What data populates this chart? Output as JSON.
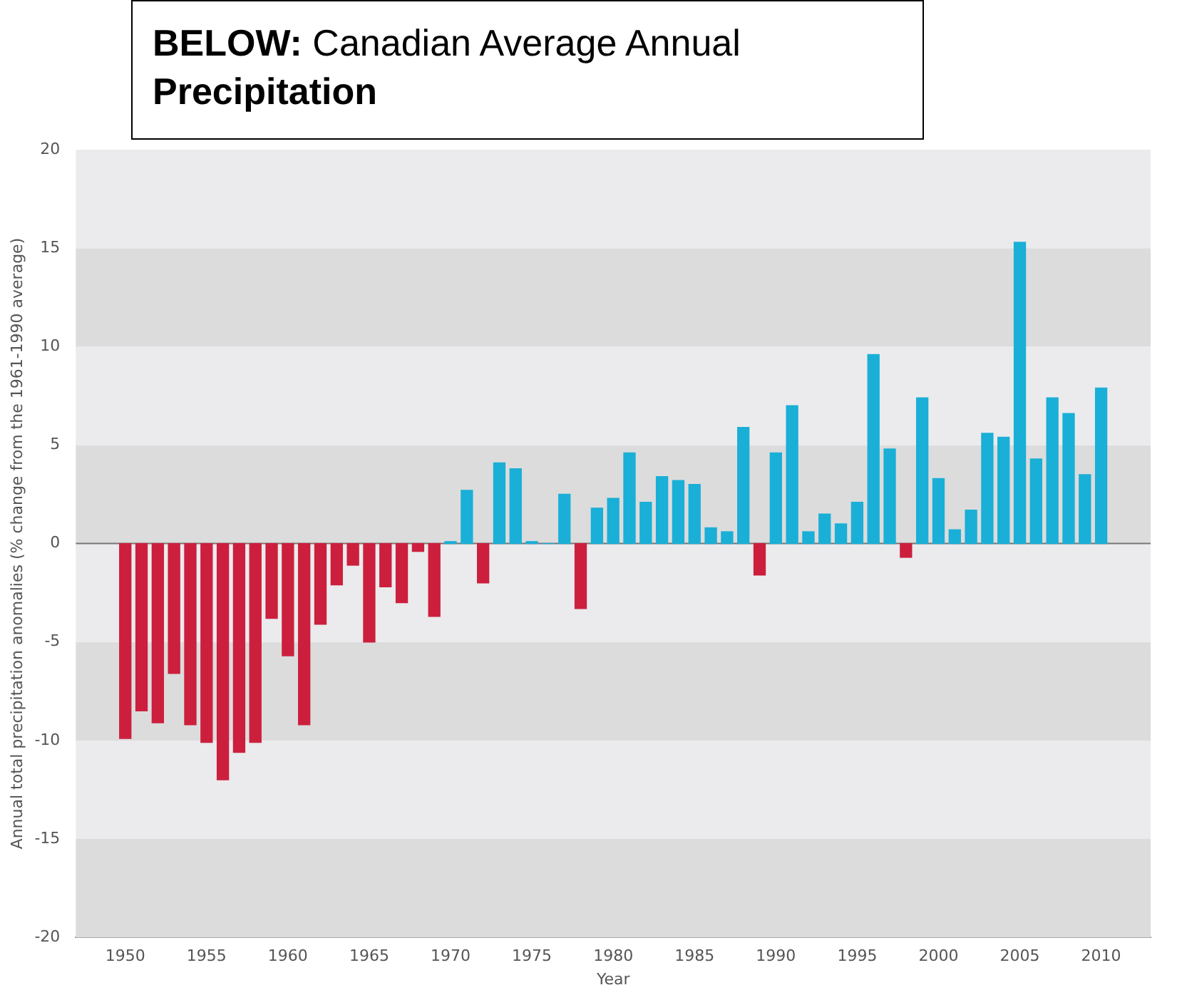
{
  "chart_data": {
    "type": "bar",
    "title": "BELOW: Canadian Average Annual Precipitation",
    "xlabel": "Year",
    "ylabel": "Annual total precipitation anomalies (% change from the 1961-1990 average)",
    "x": [
      1950,
      1951,
      1952,
      1953,
      1954,
      1955,
      1956,
      1957,
      1958,
      1959,
      1960,
      1961,
      1962,
      1963,
      1964,
      1965,
      1966,
      1967,
      1968,
      1969,
      1970,
      1971,
      1972,
      1973,
      1974,
      1975,
      1976,
      1977,
      1978,
      1979,
      1980,
      1981,
      1982,
      1983,
      1984,
      1985,
      1986,
      1987,
      1988,
      1989,
      1990,
      1991,
      1992,
      1993,
      1994,
      1995,
      1996,
      1997,
      1998,
      1999,
      2000,
      2001,
      2002,
      2003,
      2004,
      2005,
      2006,
      2007,
      2008,
      2009,
      2010
    ],
    "values": [
      -9.9,
      -8.5,
      -9.1,
      -6.6,
      -9.2,
      -10.1,
      -12.0,
      -10.6,
      -10.1,
      -3.8,
      -5.7,
      -9.2,
      -4.1,
      -2.1,
      -1.1,
      -5.0,
      -2.2,
      -3.0,
      -0.4,
      -3.7,
      0.1,
      2.7,
      -2.0,
      4.1,
      3.8,
      0.1,
      0,
      2.5,
      -3.3,
      1.8,
      2.3,
      4.6,
      2.1,
      3.4,
      3.2,
      3.0,
      0.8,
      0.6,
      5.9,
      -1.6,
      4.6,
      7.0,
      0.6,
      1.5,
      1.0,
      2.1,
      9.6,
      4.8,
      -0.7,
      7.4,
      3.3,
      0.7,
      1.7,
      5.6,
      5.4,
      15.3,
      4.3,
      7.4,
      6.6,
      3.5,
      7.9
    ],
    "colors": [
      "#cc1f3d",
      "#cc1f3d",
      "#cc1f3d",
      "#cc1f3d",
      "#cc1f3d",
      "#cc1f3d",
      "#cc1f3d",
      "#cc1f3d",
      "#cc1f3d",
      "#cc1f3d",
      "#cc1f3d",
      "#cc1f3d",
      "#cc1f3d",
      "#cc1f3d",
      "#cc1f3d",
      "#cc1f3d",
      "#cc1f3d",
      "#cc1f3d",
      "#cc1f3d",
      "#cc1f3d",
      "#1aafd6",
      "#1aafd6",
      "#cc1f3d",
      "#1aafd6",
      "#1aafd6",
      "#1aafd6",
      "#1aafd6",
      "#1aafd6",
      "#cc1f3d",
      "#1aafd6",
      "#1aafd6",
      "#1aafd6",
      "#1aafd6",
      "#1aafd6",
      "#1aafd6",
      "#1aafd6",
      "#1aafd6",
      "#1aafd6",
      "#1aafd6",
      "#cc1f3d",
      "#1aafd6",
      "#1aafd6",
      "#1aafd6",
      "#1aafd6",
      "#1aafd6",
      "#1aafd6",
      "#1aafd6",
      "#1aafd6",
      "#cc1f3d",
      "#1aafd6",
      "#1aafd6",
      "#1aafd6",
      "#1aafd6",
      "#1aafd6",
      "#1aafd6",
      "#1aafd6",
      "#1aafd6",
      "#1aafd6",
      "#1aafd6",
      "#1aafd6",
      "#1aafd6"
    ],
    "xlim": [
      1949.5,
      2010.5
    ],
    "xticks": [
      1950,
      1955,
      1960,
      1965,
      1970,
      1975,
      1980,
      1985,
      1990,
      1995,
      2000,
      2005,
      2010
    ],
    "ylim": [
      -20,
      20
    ],
    "yticks": [
      -20,
      -15,
      -10,
      -5,
      0,
      5,
      10,
      15,
      20
    ],
    "grid": true,
    "legend": false
  }
}
